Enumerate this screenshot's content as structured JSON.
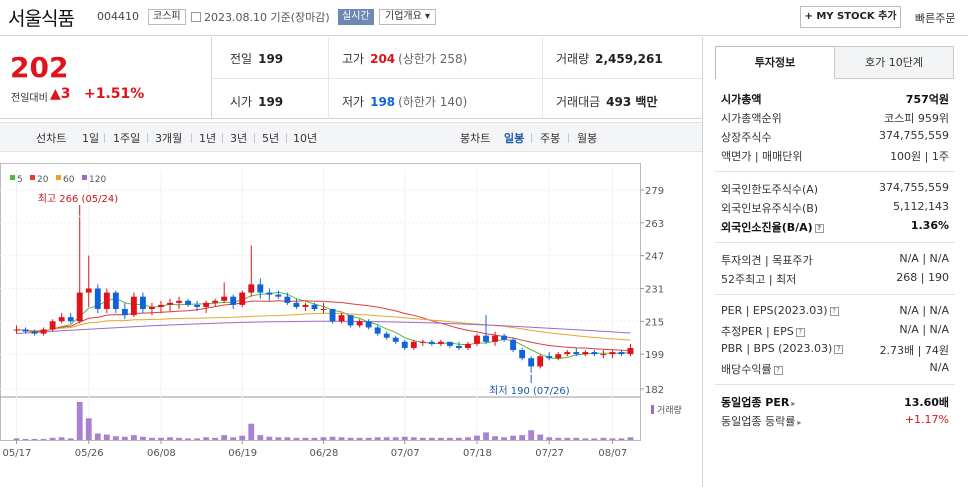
{
  "header": {
    "name": "서울식품",
    "code": "004410",
    "market": "코스피",
    "date": "2023.08.10 기준(장마감)",
    "live": "실시간",
    "company_info": "기업개요 ▾",
    "mystock": "+ MY STOCK 추가",
    "quick_order": "빠른주문"
  },
  "price": {
    "current": "202",
    "change_label": "전일대비",
    "change": "▲3",
    "change_pct": "+1.51%"
  },
  "stats": {
    "prev_label": "전일",
    "prev": "199",
    "high_label": "고가",
    "high": "204",
    "high_sub": "(상한가 258)",
    "volume_label": "거래량",
    "volume": "2,459,261",
    "open_label": "시가",
    "open": "199",
    "low_label": "저가",
    "low": "198",
    "low_sub": "(하한가 140)",
    "amount_label": "거래대금",
    "amount": "493 백만"
  },
  "tabs": {
    "line_chart": "선차트",
    "d1": "1일",
    "w1": "1주일",
    "m3": "3개월",
    "y1": "1년",
    "y3": "3년",
    "y5": "5년",
    "y10": "10년",
    "candle": "봉차트",
    "daily": "일봉",
    "weekly": "주봉",
    "monthly": "월봉"
  },
  "chart_data": {
    "type": "candlestick",
    "ma_legend": [
      "5",
      "20",
      "60",
      "120"
    ],
    "ma_colors": [
      "#59b543",
      "#e03c3c",
      "#e1a72b",
      "#9b6bc8"
    ],
    "y_ticks": [
      "279",
      "263",
      "247",
      "231",
      "215",
      "199",
      "182"
    ],
    "x_ticks": [
      "05/17",
      "05/26",
      "06/08",
      "06/19",
      "06/28",
      "07/07",
      "07/18",
      "07/27",
      "08/07"
    ],
    "high_annot": "최고 266 (05/24)",
    "low_annot": "최저 190 (07/26)",
    "volume_label": "거래량",
    "candles": [
      [
        211,
        213,
        209,
        211
      ],
      [
        211,
        212,
        209,
        210
      ],
      [
        210,
        211,
        208,
        209
      ],
      [
        209,
        212,
        208,
        211
      ],
      [
        211,
        216,
        210,
        215
      ],
      [
        215,
        219,
        214,
        217
      ],
      [
        217,
        219,
        214,
        215
      ],
      [
        215,
        266,
        214,
        229
      ],
      [
        229,
        247,
        222,
        231
      ],
      [
        231,
        233,
        219,
        221
      ],
      [
        221,
        231,
        219,
        229
      ],
      [
        229,
        230,
        219,
        221
      ],
      [
        221,
        224,
        216,
        218
      ],
      [
        218,
        229,
        217,
        227
      ],
      [
        227,
        229,
        219,
        221
      ],
      [
        221,
        224,
        218,
        222
      ],
      [
        222,
        225,
        219,
        223
      ],
      [
        223,
        226,
        220,
        224
      ],
      [
        224,
        227,
        221,
        225
      ],
      [
        225,
        226,
        222,
        223
      ],
      [
        223,
        225,
        220,
        222
      ],
      [
        222,
        225,
        219,
        224
      ],
      [
        224,
        226,
        222,
        225
      ],
      [
        225,
        234,
        224,
        227
      ],
      [
        227,
        228,
        221,
        223
      ],
      [
        223,
        230,
        222,
        229
      ],
      [
        229,
        252,
        227,
        233
      ],
      [
        233,
        236,
        226,
        229
      ],
      [
        229,
        231,
        225,
        228
      ],
      [
        228,
        230,
        226,
        227
      ],
      [
        227,
        229,
        223,
        224
      ],
      [
        224,
        226,
        221,
        222
      ],
      [
        222,
        224,
        220,
        223
      ],
      [
        223,
        224,
        220,
        221
      ],
      [
        221,
        224,
        219,
        221
      ],
      [
        221,
        221,
        214,
        215
      ],
      [
        215,
        219,
        214,
        218
      ],
      [
        218,
        218,
        212,
        213
      ],
      [
        213,
        216,
        212,
        215
      ],
      [
        215,
        216,
        211,
        212
      ],
      [
        212,
        213,
        208,
        209
      ],
      [
        209,
        210,
        206,
        207
      ],
      [
        207,
        208,
        204,
        205
      ],
      [
        205,
        206,
        201,
        202
      ],
      [
        202,
        206,
        201,
        205
      ],
      [
        205,
        206,
        203,
        205
      ],
      [
        205,
        206,
        203,
        204
      ],
      [
        204,
        206,
        203,
        205
      ],
      [
        205,
        205,
        202,
        203
      ],
      [
        203,
        205,
        201,
        202
      ],
      [
        202,
        205,
        201,
        204
      ],
      [
        204,
        209,
        203,
        208
      ],
      [
        208,
        218,
        204,
        205
      ],
      [
        205,
        210,
        203,
        208
      ],
      [
        208,
        209,
        205,
        206
      ],
      [
        206,
        207,
        200,
        201
      ],
      [
        201,
        202,
        196,
        197
      ],
      [
        197,
        198,
        190,
        193
      ],
      [
        193,
        199,
        192,
        198
      ],
      [
        198,
        200,
        196,
        197
      ],
      [
        197,
        200,
        196,
        199
      ],
      [
        199,
        201,
        198,
        200
      ],
      [
        200,
        202,
        198,
        199
      ],
      [
        199,
        201,
        198,
        200
      ],
      [
        200,
        201,
        198,
        199
      ],
      [
        199,
        201,
        197,
        199
      ],
      [
        199,
        201,
        197,
        200
      ],
      [
        200,
        201,
        198,
        199
      ],
      [
        199,
        204,
        198,
        202
      ]
    ],
    "volumes": [
      3,
      2,
      2,
      2,
      4,
      5,
      3,
      70,
      40,
      12,
      10,
      7,
      6,
      9,
      6,
      4,
      4,
      5,
      4,
      3,
      3,
      5,
      4,
      9,
      5,
      8,
      30,
      9,
      6,
      5,
      5,
      4,
      4,
      4,
      5,
      6,
      5,
      4,
      4,
      4,
      5,
      5,
      5,
      6,
      5,
      4,
      4,
      4,
      4,
      4,
      5,
      8,
      14,
      7,
      5,
      8,
      9,
      18,
      10,
      5,
      4,
      4,
      4,
      3,
      3,
      4,
      3,
      3,
      5
    ]
  },
  "side": {
    "tab_invest": "투자정보",
    "tab_hoga": "호가 10단계",
    "mcap_label": "시가총액",
    "mcap": "757억원",
    "mcap_rank_label": "시가총액순위",
    "mcap_rank": "코스피 959위",
    "shares_label": "상장주식수",
    "shares": "374,755,559",
    "par_label": "액면가 | 매매단위",
    "par": "100원 | 1주",
    "foreign_limit_label": "외국인한도주식수(A)",
    "foreign_limit": "374,755,559",
    "foreign_hold_label": "외국인보유주식수(B)",
    "foreign_hold": "5,112,143",
    "foreign_ratio_label": "외국인소진율(B/A)",
    "foreign_ratio": "1.36%",
    "opinion_label": "투자의견 | 목표주가",
    "opinion": "N/A | N/A",
    "w52_label": "52주최고 | 최저",
    "w52": "268 | 190",
    "per_label": "PER | EPS(2023.03)",
    "per": "N/A | N/A",
    "est_per_label": "추정PER | EPS",
    "est_per": "N/A | N/A",
    "pbr_label": "PBR | BPS (2023.03)",
    "pbr": "2.73배 | 74원",
    "div_label": "배당수익률",
    "div": "N/A",
    "ind_per_label": "동일업종 PER",
    "ind_per": "13.60배",
    "ind_chg_label": "동일업종 등락률",
    "ind_chg": "+1.17%"
  }
}
